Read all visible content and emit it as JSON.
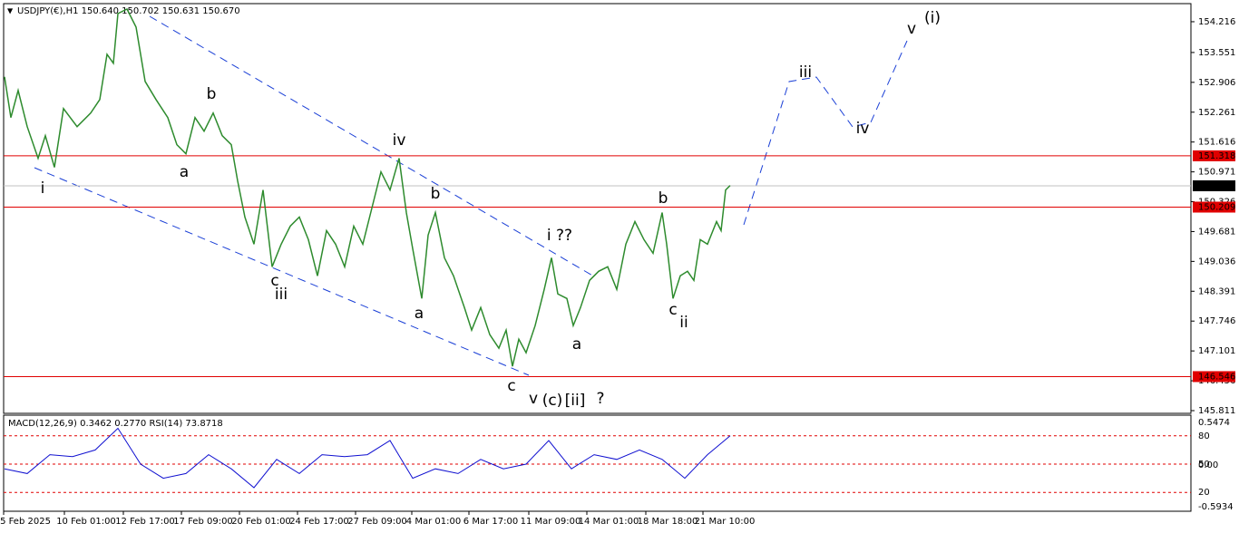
{
  "chart_data": {
    "type": "line",
    "title": "USDJPY(€),H1  150.640 150.702 150.631 150.670",
    "x": [
      1,
      8,
      16,
      26,
      38,
      46,
      56,
      66,
      81,
      96,
      106,
      114,
      121,
      126,
      136,
      146,
      156,
      168,
      181,
      191,
      201,
      211,
      221,
      231,
      241,
      251,
      258,
      266,
      276,
      286,
      296,
      306,
      316,
      326,
      336,
      346,
      356,
      366,
      376,
      386,
      396,
      406,
      416,
      426,
      436,
      444,
      451,
      461,
      468,
      476,
      486,
      496,
      508,
      516,
      526,
      536,
      546,
      554,
      561,
      568,
      576,
      586,
      596,
      604,
      611,
      621,
      628,
      636,
      646,
      656,
      666,
      676,
      686,
      696,
      706,
      716,
      726,
      731,
      738,
      746,
      754,
      761,
      768,
      776,
      786,
      791,
      796,
      801
    ],
    "values": [
      153.024,
      152.144,
      152.73,
      151.949,
      151.265,
      151.753,
      151.069,
      152.339,
      151.949,
      152.242,
      152.535,
      153.512,
      153.317,
      154.392,
      154.49,
      154.099,
      152.926,
      152.535,
      152.144,
      151.558,
      151.362,
      152.144,
      151.851,
      152.242,
      151.753,
      151.558,
      150.776,
      149.994,
      149.408,
      150.58,
      148.919,
      149.408,
      149.798,
      149.994,
      149.505,
      148.723,
      149.701,
      149.408,
      148.919,
      149.798,
      149.408,
      150.189,
      150.971,
      150.58,
      151.265,
      150.092,
      149.31,
      148.235,
      149.603,
      150.092,
      149.114,
      148.723,
      148.039,
      147.551,
      148.039,
      147.453,
      147.16,
      147.551,
      146.769,
      147.355,
      147.062,
      147.648,
      148.43,
      149.114,
      148.332,
      148.235,
      147.648,
      148.039,
      148.626,
      148.821,
      148.919,
      148.43,
      149.408,
      149.896,
      149.505,
      149.212,
      150.092,
      149.408,
      148.235,
      148.723,
      148.821,
      148.626,
      149.505,
      149.408,
      149.896,
      149.701,
      150.58,
      150.678
    ],
    "color": "#2e8b2e",
    "xlim": [
      0,
      1309
    ],
    "ylim": [
      145.752,
      154.607
    ],
    "yticks": [
      {
        "value": 154.216,
        "label": "154.216"
      },
      {
        "value": 153.551,
        "label": "153.551"
      },
      {
        "value": 152.906,
        "label": "152.906"
      },
      {
        "value": 152.261,
        "label": "152.261"
      },
      {
        "value": 151.616,
        "label": "151.616"
      },
      {
        "value": 150.971,
        "label": "150.971"
      },
      {
        "value": 150.326,
        "label": "150.326"
      },
      {
        "value": 149.681,
        "label": "149.681"
      },
      {
        "value": 149.036,
        "label": "149.036"
      },
      {
        "value": 148.391,
        "label": "148.391"
      },
      {
        "value": 147.746,
        "label": "147.746"
      },
      {
        "value": 147.101,
        "label": "147.101"
      },
      {
        "value": 146.456,
        "label": "146.456"
      },
      {
        "value": 145.811,
        "label": "145.811"
      }
    ],
    "levels": [
      {
        "value": 151.318,
        "label": "151.318",
        "color": "#e00000"
      },
      {
        "value": 150.209,
        "label": "150.209",
        "color": "#e00000"
      },
      {
        "value": 146.546,
        "label": "146.546",
        "color": "#e00000"
      }
    ],
    "current": {
      "value": 150.67,
      "label": "150.670"
    },
    "categories": [
      "5 Feb 2025",
      "10 Feb 01:00",
      "12 Feb 17:00",
      "17 Feb 09:00",
      "20 Feb 01:00",
      "24 Feb 17:00",
      "27 Feb 09:00",
      "4 Mar 01:00",
      "6 Mar 17:00",
      "11 Mar 09:00",
      "14 Mar 01:00",
      "18 Mar 18:00",
      "21 Mar 10:00"
    ],
    "annotations": [
      {
        "text": "i",
        "color": "#e020e0"
      },
      {
        "text": "b",
        "color": "#000000"
      },
      {
        "text": "a",
        "color": "#000000"
      },
      {
        "text": "c",
        "color": "#000000"
      },
      {
        "text": "iii",
        "color": "#e020e0"
      },
      {
        "text": "iv",
        "color": "#e020e0"
      },
      {
        "text": "b",
        "color": "#000000"
      },
      {
        "text": "a",
        "color": "#000000"
      },
      {
        "text": "i ??",
        "color": "#e020e0"
      },
      {
        "text": "a",
        "color": "#000000"
      },
      {
        "text": "c",
        "color": "#000000"
      },
      {
        "text": "v",
        "color": "#e020e0"
      },
      {
        "text": "(c)",
        "color": "#1a3fd6"
      },
      {
        "text": "[ii]",
        "color": "#1a8a1a"
      },
      {
        "text": "?",
        "color": "#1a8a1a"
      },
      {
        "text": "b",
        "color": "#000000"
      },
      {
        "text": "c",
        "color": "#000000"
      },
      {
        "text": "ii",
        "color": "#e020e0"
      },
      {
        "text": "iii",
        "color": "#e020e0"
      },
      {
        "text": "iv",
        "color": "#e020e0"
      },
      {
        "text": "v",
        "color": "#e020e0"
      },
      {
        "text": "(i)",
        "color": "#1a3fd6"
      }
    ],
    "indicator": {
      "title": "MACD(12,26,9) 0.3462 0.2770 RSI(14) 73.8718",
      "ylim": [
        0,
        100
      ],
      "yticks": [
        80,
        50,
        20
      ],
      "macd_labels": [
        "0.5474",
        "0.00",
        "-0.5934"
      ],
      "color": "#1010d0",
      "x": [
        1,
        26,
        51,
        76,
        101,
        126,
        151,
        176,
        201,
        226,
        251,
        276,
        301,
        326,
        351,
        376,
        401,
        426,
        451,
        476,
        501,
        526,
        551,
        576,
        601,
        626,
        651,
        676,
        701,
        726,
        751,
        776,
        801
      ],
      "values": [
        45,
        40,
        60,
        58,
        65,
        88,
        50,
        35,
        40,
        60,
        45,
        25,
        55,
        40,
        60,
        58,
        60,
        75,
        35,
        45,
        40,
        55,
        45,
        50,
        75,
        45,
        60,
        55,
        65,
        55,
        35,
        60,
        80
      ]
    }
  }
}
